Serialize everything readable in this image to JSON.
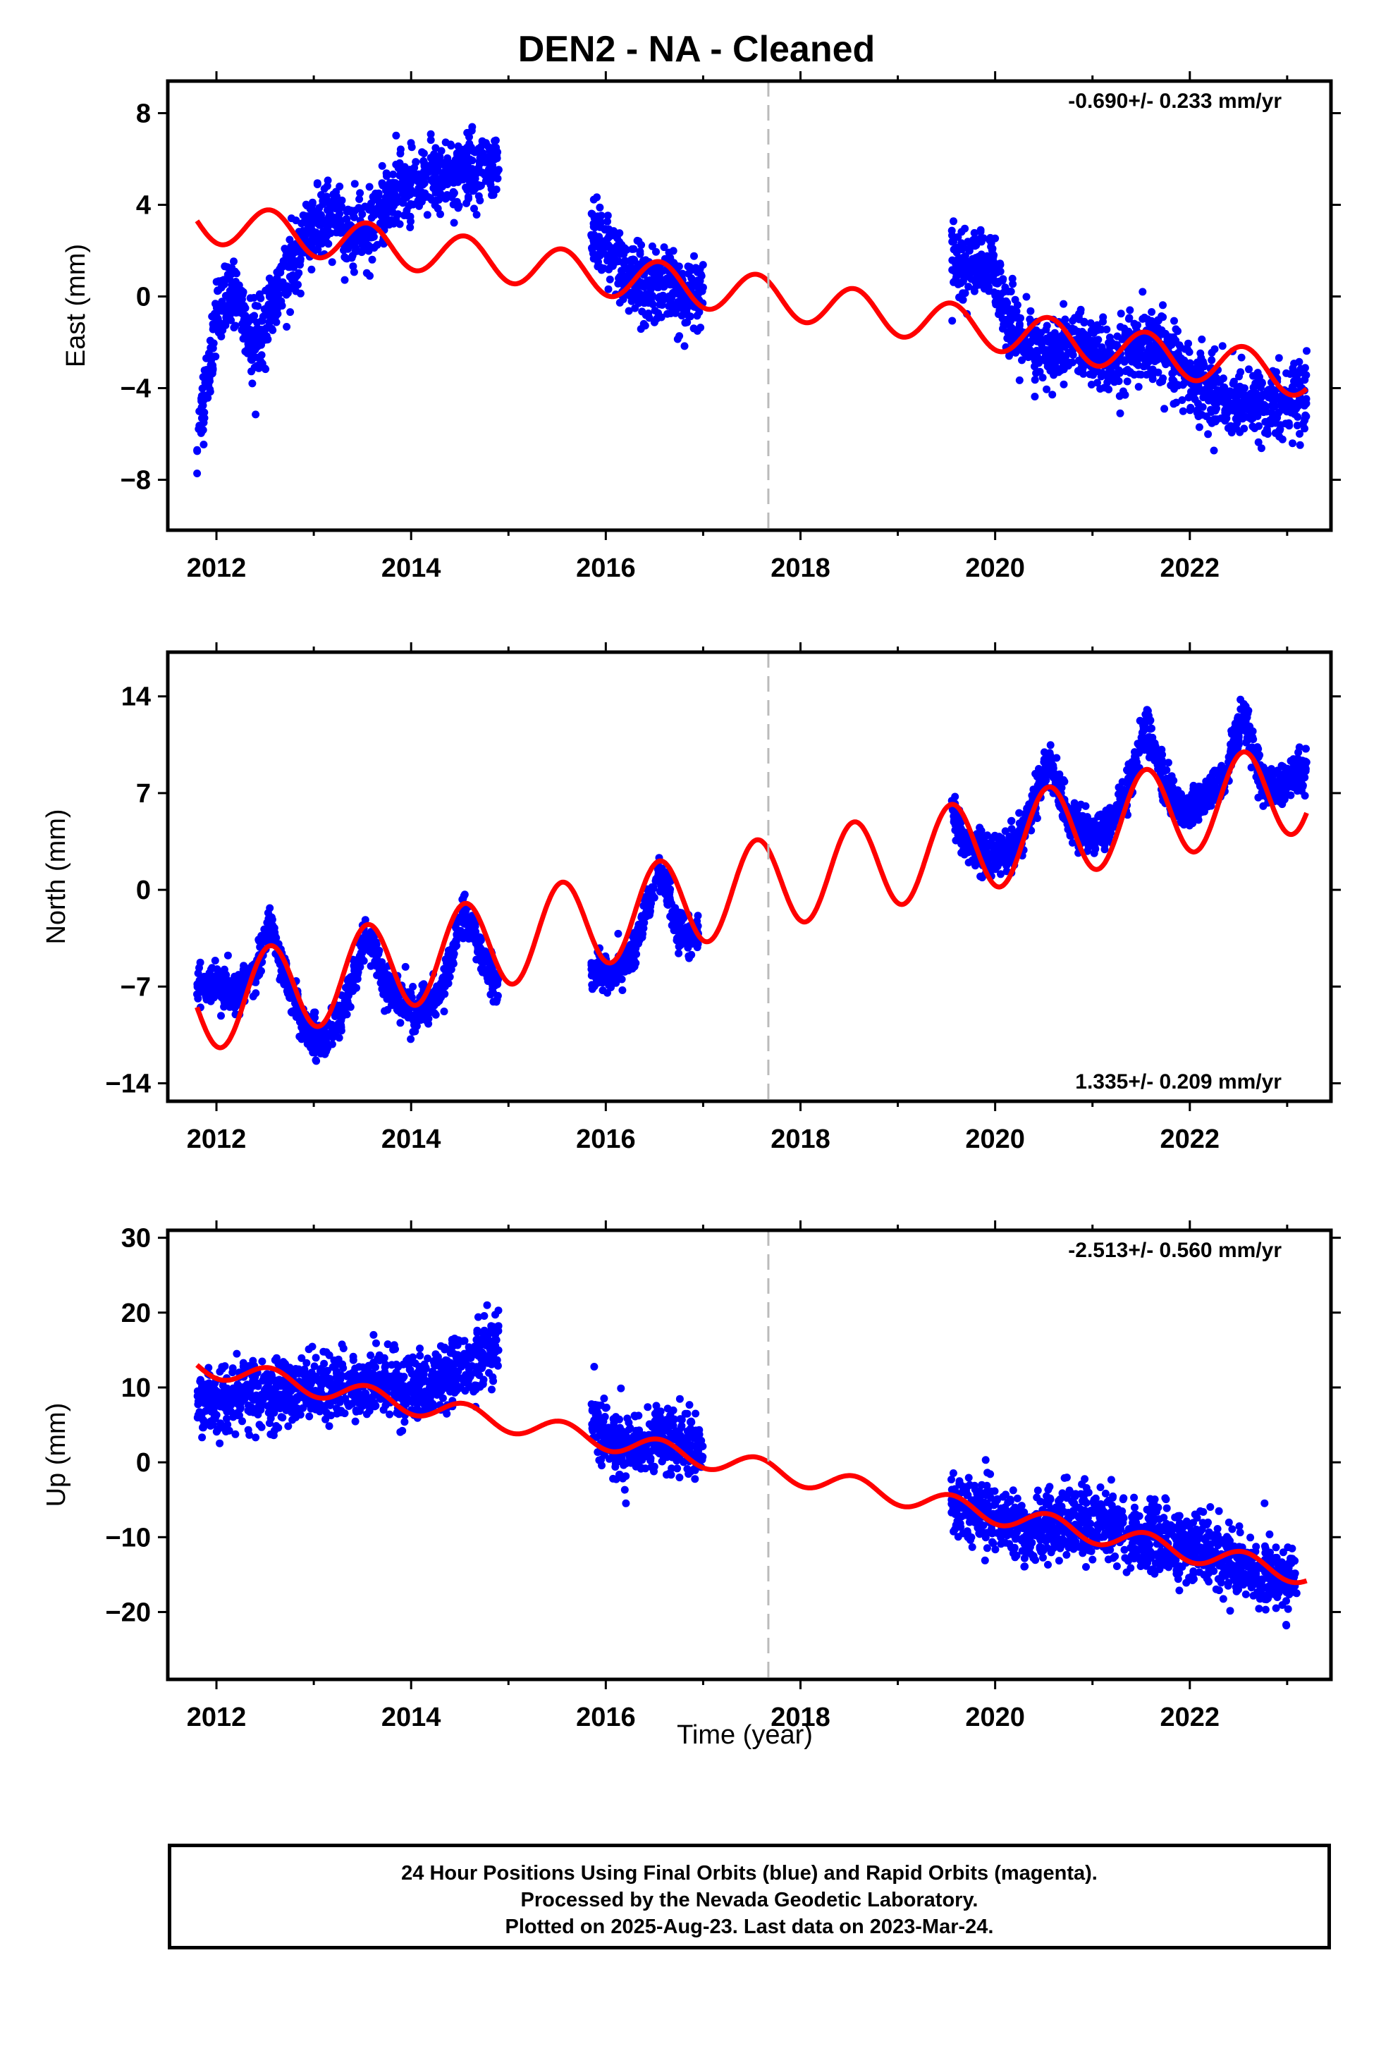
{
  "title": "DEN2  - NA - Cleaned",
  "xlabel": "Time (year)",
  "footer": {
    "line1": "24 Hour Positions Using Final Orbits (blue) and Rapid Orbits (magenta).",
    "line2": "Processed by the Nevada Geodetic Laboratory.",
    "line3": "Plotted on 2025-Aug-23. Last data on 2023-Mar-24."
  },
  "colors": {
    "final_orbits": "#0000ff",
    "model": "#ff0000",
    "equipment_change": "#bbbbbb"
  },
  "chart_data": [
    {
      "type": "scatter",
      "ylabel": "East (mm)",
      "rate": "-0.690+/- 0.233 mm/yr",
      "rate_position": "top-right",
      "xlim": [
        2011.5,
        2023.45
      ],
      "ylim": [
        -10.2,
        9.4
      ],
      "xticks": [
        2012,
        2014,
        2016,
        2018,
        2020,
        2022
      ],
      "yticks": [
        -8,
        -4,
        0,
        4,
        8
      ],
      "yticklabels": [
        "−8",
        "−4",
        "0",
        "4",
        "8"
      ],
      "marker_x": 2017.67,
      "model_trend": {
        "x": [
          2011.8,
          2015.5,
          2017.67,
          2023.2
        ],
        "y": [
          3.3,
          1.2,
          0.0,
          -3.5
        ]
      },
      "model_annual_amplitude": 0.9,
      "series": [
        {
          "name": "Final orbits",
          "x": [
            2011.8,
            2012.0,
            2012.2,
            2012.4,
            2012.6,
            2012.8,
            2013.0,
            2013.2,
            2013.4,
            2013.6,
            2013.8,
            2014.05,
            2014.3,
            2014.5,
            2014.7,
            2014.9,
            2015.85,
            2016.0,
            2016.2,
            2016.4,
            2016.6,
            2016.8,
            2017.0,
            2019.55,
            2019.8,
            2020.0,
            2020.2,
            2020.4,
            2020.6,
            2020.8,
            2021.0,
            2021.2,
            2021.4,
            2021.6,
            2021.8,
            2022.0,
            2022.2,
            2022.4,
            2022.6,
            2022.8,
            2023.0,
            2023.2
          ],
          "y": [
            -6.5,
            -1.0,
            0.5,
            -2.5,
            0.0,
            1.5,
            3.0,
            3.5,
            2.5,
            3.0,
            4.5,
            5.0,
            5.2,
            5.5,
            5.6,
            5.4,
            3.0,
            2.0,
            1.0,
            0.5,
            0.5,
            0.0,
            0.3,
            1.5,
            1.5,
            1.0,
            -1.5,
            -2.5,
            -2.5,
            -2.0,
            -2.5,
            -3.0,
            -2.5,
            -2.0,
            -2.5,
            -3.5,
            -4.0,
            -4.5,
            -4.5,
            -5.0,
            -4.5,
            -4.0
          ],
          "spread": 1.4
        }
      ]
    },
    {
      "type": "scatter",
      "ylabel": "North (mm)",
      "rate": "1.335+/- 0.209 mm/yr",
      "rate_position": "bottom-right",
      "xlim": [
        2011.5,
        2023.45
      ],
      "ylim": [
        -15.3,
        17.2
      ],
      "xticks": [
        2012,
        2014,
        2016,
        2018,
        2020,
        2022
      ],
      "yticks": [
        -14,
        -7,
        0,
        7,
        14
      ],
      "yticklabels": [
        "−14",
        "−7",
        "0",
        "7",
        "14"
      ],
      "marker_x": 2017.67,
      "model_trend": {
        "x": [
          2011.8,
          2017.67,
          2023.2
        ],
        "y": [
          -8.5,
          0.5,
          7.5
        ]
      },
      "model_annual_amplitude": 3.3,
      "series": [
        {
          "name": "Final orbits",
          "x": [
            2011.8,
            2012.0,
            2012.2,
            2012.4,
            2012.55,
            2012.7,
            2012.9,
            2013.1,
            2013.3,
            2013.55,
            2013.75,
            2014.05,
            2014.3,
            2014.55,
            2014.75,
            2014.9,
            2015.85,
            2016.05,
            2016.3,
            2016.55,
            2016.75,
            2016.95,
            2019.55,
            2019.7,
            2019.9,
            2020.1,
            2020.3,
            2020.55,
            2020.75,
            2020.95,
            2021.15,
            2021.35,
            2021.55,
            2021.75,
            2021.95,
            2022.15,
            2022.35,
            2022.55,
            2022.75,
            2022.95,
            2023.2
          ],
          "y": [
            -7.0,
            -7.0,
            -7.5,
            -6.0,
            -2.5,
            -6.0,
            -10.0,
            -11.0,
            -9.0,
            -3.0,
            -7.0,
            -9.0,
            -7.5,
            -1.5,
            -5.0,
            -7.0,
            -6.0,
            -6.0,
            -4.5,
            1.5,
            -3.0,
            -3.5,
            6.0,
            3.0,
            2.5,
            2.5,
            4.5,
            9.5,
            5.0,
            4.0,
            4.5,
            7.0,
            12.0,
            7.5,
            5.5,
            6.5,
            8.0,
            13.0,
            7.5,
            7.5,
            9.0
          ],
          "spread": 1.3
        }
      ]
    },
    {
      "type": "scatter",
      "ylabel": "Up (mm)",
      "rate": "-2.513+/- 0.560 mm/yr",
      "rate_position": "top-right",
      "xlim": [
        2011.5,
        2023.45
      ],
      "ylim": [
        -29.0,
        31.0
      ],
      "xticks": [
        2012,
        2014,
        2016,
        2018,
        2020,
        2022
      ],
      "yticks": [
        -20,
        -10,
        0,
        10,
        20,
        30
      ],
      "yticklabels": [
        "−20",
        "−10",
        "0",
        "10",
        "20",
        "30"
      ],
      "marker_x": 2017.67,
      "model_trend": {
        "x": [
          2011.8,
          2017.67,
          2023.2
        ],
        "y": [
          13.0,
          -1.0,
          -15.0
        ]
      },
      "model_annual_amplitude": 1.4,
      "series": [
        {
          "name": "Final orbits",
          "x": [
            2011.8,
            2012.1,
            2012.4,
            2012.7,
            2013.0,
            2013.3,
            2013.6,
            2014.05,
            2014.3,
            2014.6,
            2014.9,
            2015.85,
            2016.1,
            2016.4,
            2016.7,
            2017.0,
            2019.55,
            2019.8,
            2020.1,
            2020.4,
            2020.7,
            2021.0,
            2021.3,
            2021.6,
            2021.9,
            2022.2,
            2022.5,
            2022.8,
            2023.1
          ],
          "y": [
            8.0,
            8.0,
            9.0,
            9.0,
            10.0,
            10.0,
            10.5,
            10.0,
            11.0,
            13.0,
            16.0,
            6.0,
            2.0,
            2.0,
            3.0,
            2.0,
            -6.0,
            -6.0,
            -8.0,
            -9.0,
            -8.0,
            -8.0,
            -9.0,
            -10.0,
            -11.0,
            -12.0,
            -14.0,
            -15.0,
            -16.0
          ],
          "spread": 4.0
        }
      ]
    }
  ]
}
